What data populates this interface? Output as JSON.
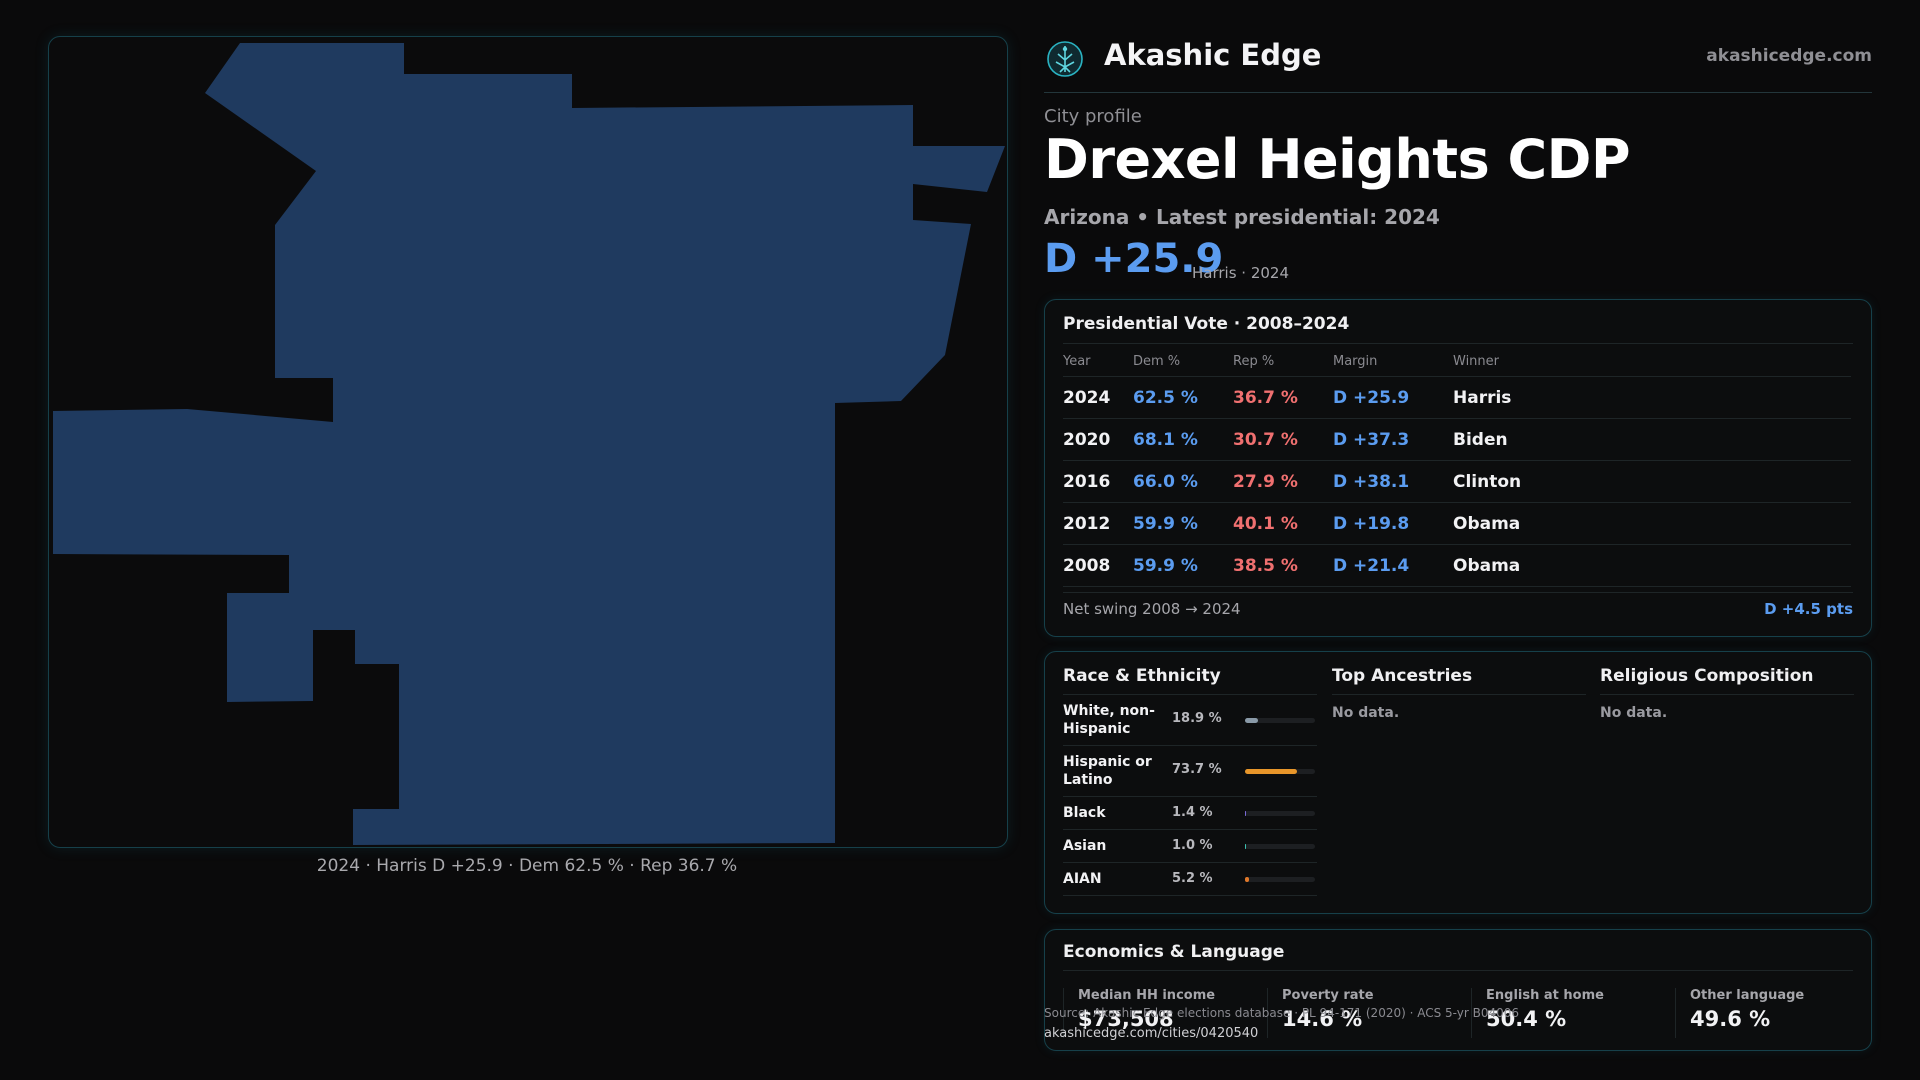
{
  "brand": {
    "name": "Akashic Edge",
    "url": "akashicedge.com",
    "logo_icon": "tree-of-life-icon"
  },
  "profile": {
    "kicker": "City profile",
    "title": "Drexel Heights CDP",
    "subtitle": "Arizona • Latest presidential: 2024",
    "margin": "D +25.9",
    "margin_note": "Harris · 2024"
  },
  "map": {
    "caption": "2024 · Harris D +25.9 · Dem 62.5 % · Rep 36.7 %",
    "fill_color": "#1f3a5f",
    "border_color": "#16404a"
  },
  "presidential": {
    "title": "Presidential Vote · 2008–2024",
    "columns": [
      "Year",
      "Dem %",
      "Rep %",
      "Margin",
      "Winner"
    ],
    "rows": [
      {
        "year": "2024",
        "dem": "62.5 %",
        "rep": "36.7 %",
        "margin": "D +25.9",
        "winner": "Harris"
      },
      {
        "year": "2020",
        "dem": "68.1 %",
        "rep": "30.7 %",
        "margin": "D +37.3",
        "winner": "Biden"
      },
      {
        "year": "2016",
        "dem": "66.0 %",
        "rep": "27.9 %",
        "margin": "D +38.1",
        "winner": "Clinton"
      },
      {
        "year": "2012",
        "dem": "59.9 %",
        "rep": "40.1 %",
        "margin": "D +19.8",
        "winner": "Obama"
      },
      {
        "year": "2008",
        "dem": "59.9 %",
        "rep": "38.5 %",
        "margin": "D +21.4",
        "winner": "Obama"
      }
    ],
    "swing_label": "Net swing 2008 → 2024",
    "swing_value": "D +4.5 pts"
  },
  "demographics": {
    "race": {
      "title": "Race & Ethnicity",
      "rows": [
        {
          "name": "White, non-Hispanic",
          "pct": "18.9 %",
          "share": 0.189,
          "color": "#8a9aa8"
        },
        {
          "name": "Hispanic or Latino",
          "pct": "73.7 %",
          "share": 0.737,
          "color": "#e8962a"
        },
        {
          "name": "Black",
          "pct": "1.4 %",
          "share": 0.014,
          "color": "#7a6ad8"
        },
        {
          "name": "Asian",
          "pct": "1.0 %",
          "share": 0.01,
          "color": "#3cc0b0"
        },
        {
          "name": "AIAN",
          "pct": "5.2 %",
          "share": 0.052,
          "color": "#e0782a"
        }
      ]
    },
    "ancestries": {
      "title": "Top Ancestries",
      "empty": "No data."
    },
    "religion": {
      "title": "Religious Composition",
      "empty": "No data."
    }
  },
  "economics": {
    "title": "Economics & Language",
    "stats": [
      {
        "label": "Median HH income",
        "value": "$73,508"
      },
      {
        "label": "Poverty rate",
        "value": "14.6 %"
      },
      {
        "label": "English at home",
        "value": "50.4 %"
      },
      {
        "label": "Other language",
        "value": "49.6 %"
      }
    ]
  },
  "footer": {
    "source": "Source: Akashic Edge elections database · PL 94-171 (2020) · ACS 5-yr B04006",
    "url": "akashicedge.com/cities/0420540"
  }
}
